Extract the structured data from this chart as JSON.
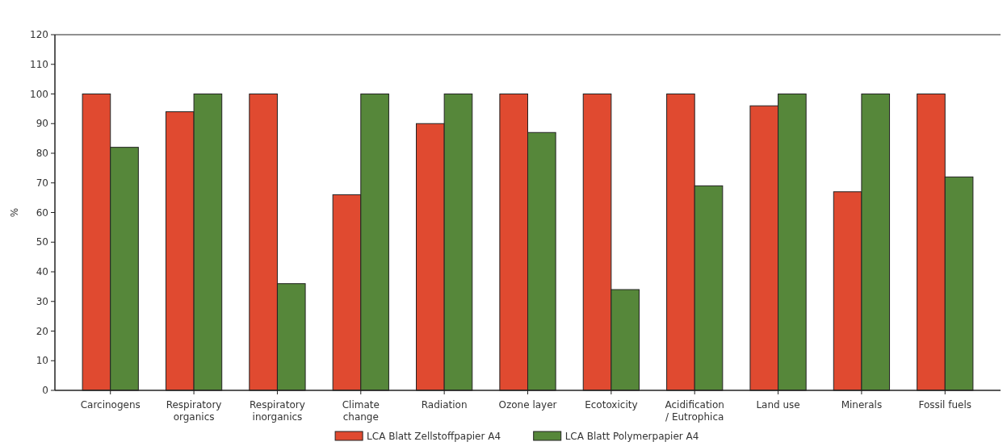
{
  "chart_data": {
    "type": "bar",
    "ylabel": "%",
    "categories": [
      "Carcinogens",
      "Respiratory organics",
      "Respiratory inorganics",
      "Climate change",
      "Radiation",
      "Ozone layer",
      "Ecotoxicity",
      "Acidification / Eutrophica",
      "Land use",
      "Minerals",
      "Fossil fuels"
    ],
    "series": [
      {
        "name": "LCA Blatt Zellstoffpapier A4",
        "color": "#e04a30",
        "values": [
          100,
          94,
          100,
          66,
          90,
          100,
          100,
          100,
          96,
          67,
          100
        ]
      },
      {
        "name": "LCA Blatt Polymerpapier A4",
        "color": "#56873a",
        "values": [
          82,
          100,
          36,
          100,
          100,
          87,
          34,
          69,
          100,
          100,
          72
        ]
      }
    ],
    "ylim": [
      0,
      120
    ],
    "yticks": [
      0,
      10,
      20,
      30,
      40,
      50,
      60,
      70,
      80,
      90,
      100,
      110,
      120
    ],
    "grid": false,
    "legend": "bottom"
  }
}
